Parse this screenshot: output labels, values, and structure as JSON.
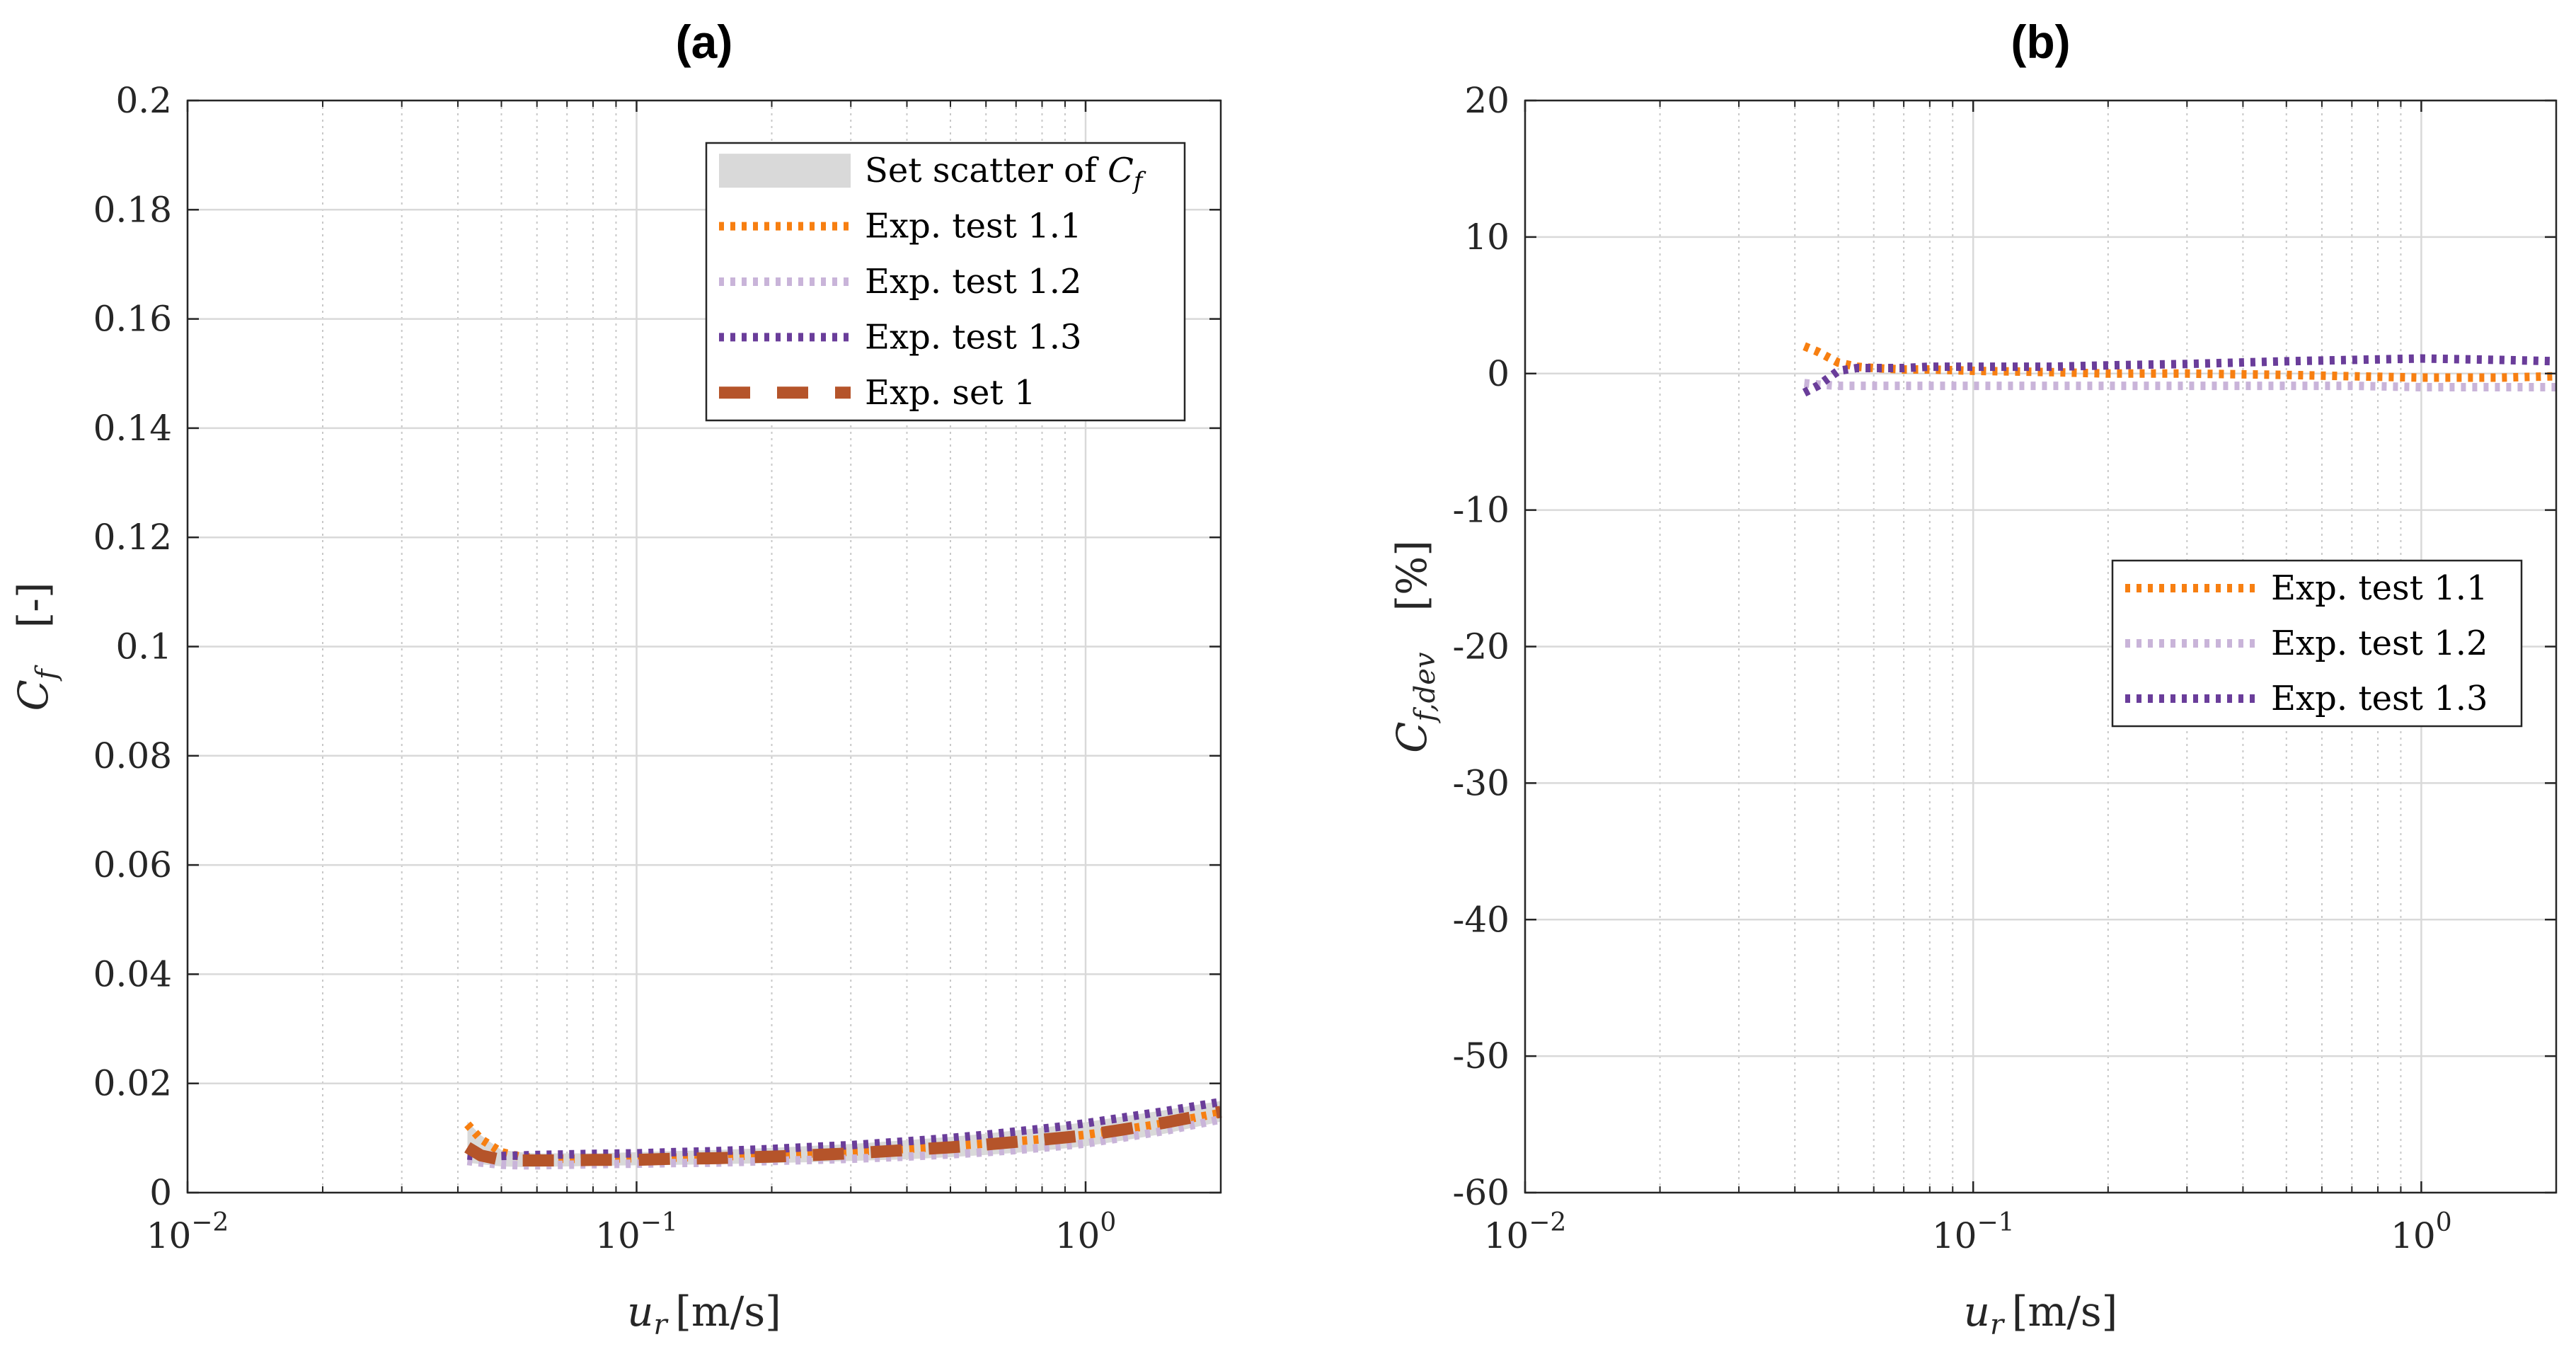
{
  "chart_data": [
    {
      "id": "a",
      "type": "line",
      "title": "(a)",
      "xscale": "log",
      "xlim": [
        0.01,
        2.0
      ],
      "ylim": [
        0,
        0.2
      ],
      "xticks": [
        {
          "value": 0.01,
          "base": "10",
          "exp": "−2"
        },
        {
          "value": 0.1,
          "base": "10",
          "exp": "−1"
        },
        {
          "value": 1,
          "base": "10",
          "exp": "0"
        }
      ],
      "yticks": [
        {
          "value": 0,
          "label": "0"
        },
        {
          "value": 0.02,
          "label": "0.02"
        },
        {
          "value": 0.04,
          "label": "0.04"
        },
        {
          "value": 0.06,
          "label": "0.06"
        },
        {
          "value": 0.08,
          "label": "0.08"
        },
        {
          "value": 0.1,
          "label": "0.1"
        },
        {
          "value": 0.12,
          "label": "0.12"
        },
        {
          "value": 0.14,
          "label": "0.14"
        },
        {
          "value": 0.16,
          "label": "0.16"
        },
        {
          "value": 0.18,
          "label": "0.18"
        },
        {
          "value": 0.2,
          "label": "0.2"
        }
      ],
      "xlabel": {
        "var": "u",
        "sub": "r",
        "unit": "[m/s]"
      },
      "ylabel": {
        "var": "C",
        "sub": "f",
        "unit": "[-]"
      },
      "grid": true,
      "legend_position": "top-right",
      "x": [
        0.042,
        0.045,
        0.05,
        0.055,
        0.06,
        0.07,
        0.08,
        0.1,
        0.12,
        0.15,
        0.2,
        0.25,
        0.3,
        0.4,
        0.5,
        0.6,
        0.7,
        0.8,
        0.9,
        1.0,
        1.2,
        1.5,
        2.0
      ],
      "scatter_band": {
        "name": "Set scatter of C_f",
        "legend_label": "Set scatter of ",
        "legend_var": "C",
        "legend_sub": "f",
        "color": "#d9d9d9",
        "lower": [
          0.0055,
          0.0052,
          0.0048,
          0.0047,
          0.0047,
          0.0048,
          0.0049,
          0.005,
          0.0051,
          0.0052,
          0.0054,
          0.0056,
          0.0058,
          0.0061,
          0.0065,
          0.0069,
          0.0073,
          0.0077,
          0.0081,
          0.0085,
          0.0095,
          0.0108,
          0.013
        ],
        "upper": [
          0.013,
          0.0105,
          0.0078,
          0.0074,
          0.0072,
          0.0072,
          0.0072,
          0.0074,
          0.0076,
          0.0078,
          0.0082,
          0.0086,
          0.0089,
          0.0096,
          0.0102,
          0.0108,
          0.0114,
          0.0119,
          0.0124,
          0.0129,
          0.0139,
          0.0151,
          0.0168
        ]
      },
      "series": [
        {
          "name": "Exp. test 1.1",
          "color": "#f77f11",
          "style": "dotted",
          "values": [
            0.0125,
            0.0098,
            0.0074,
            0.0066,
            0.0063,
            0.0062,
            0.0062,
            0.0063,
            0.0064,
            0.0066,
            0.0069,
            0.0072,
            0.0075,
            0.008,
            0.0085,
            0.009,
            0.0094,
            0.0098,
            0.0102,
            0.0106,
            0.0115,
            0.0127,
            0.0146
          ]
        },
        {
          "name": "Exp. test 1.2",
          "color": "#c9b4d9",
          "style": "dotted",
          "values": [
            0.0058,
            0.0055,
            0.0051,
            0.005,
            0.005,
            0.0051,
            0.0052,
            0.0053,
            0.0054,
            0.0055,
            0.0058,
            0.006,
            0.0062,
            0.0066,
            0.007,
            0.0074,
            0.0078,
            0.0082,
            0.0086,
            0.009,
            0.01,
            0.0113,
            0.0134
          ]
        },
        {
          "name": "Exp. test 1.3",
          "color": "#6a3d9a",
          "style": "dotted",
          "values": [
            0.0068,
            0.0066,
            0.0067,
            0.0068,
            0.0069,
            0.007,
            0.0071,
            0.0072,
            0.0074,
            0.0076,
            0.008,
            0.0084,
            0.0087,
            0.0094,
            0.01,
            0.0106,
            0.0112,
            0.0117,
            0.0122,
            0.0127,
            0.0137,
            0.0149,
            0.0166
          ]
        },
        {
          "name": "Exp. set 1",
          "color": "#b5542a",
          "style": "dashed",
          "values": [
            0.0083,
            0.0068,
            0.006,
            0.0059,
            0.0059,
            0.0059,
            0.006,
            0.006,
            0.0062,
            0.0063,
            0.0066,
            0.0069,
            0.0072,
            0.0078,
            0.0083,
            0.0088,
            0.0093,
            0.0097,
            0.0101,
            0.0105,
            0.0115,
            0.0128,
            0.0148
          ]
        }
      ]
    },
    {
      "id": "b",
      "type": "line",
      "title": "(b)",
      "xscale": "log",
      "xlim": [
        0.01,
        2.0
      ],
      "ylim": [
        -60,
        20
      ],
      "xticks": [
        {
          "value": 0.01,
          "base": "10",
          "exp": "−2"
        },
        {
          "value": 0.1,
          "base": "10",
          "exp": "−1"
        },
        {
          "value": 1,
          "base": "10",
          "exp": "0"
        }
      ],
      "yticks": [
        {
          "value": -60,
          "label": "-60"
        },
        {
          "value": -50,
          "label": "-50"
        },
        {
          "value": -40,
          "label": "-40"
        },
        {
          "value": -30,
          "label": "-30"
        },
        {
          "value": -20,
          "label": "-20"
        },
        {
          "value": -10,
          "label": "-10"
        },
        {
          "value": 0,
          "label": "0"
        },
        {
          "value": 10,
          "label": "10"
        },
        {
          "value": 20,
          "label": "20"
        }
      ],
      "xlabel": {
        "var": "u",
        "sub": "r",
        "unit": "[m/s]"
      },
      "ylabel": {
        "var": "C",
        "sub": "f,dev",
        "unit": "[%]"
      },
      "grid": true,
      "legend_position": "center-right",
      "x": [
        0.042,
        0.045,
        0.05,
        0.055,
        0.06,
        0.07,
        0.08,
        0.1,
        0.15,
        0.2,
        0.3,
        0.5,
        0.7,
        1.0,
        1.5,
        2.0
      ],
      "series": [
        {
          "name": "Exp. test 1.1",
          "color": "#f77f11",
          "style": "dashdot",
          "values": [
            2.0,
            1.6,
            0.8,
            0.5,
            0.4,
            0.3,
            0.3,
            0.2,
            0.1,
            0.0,
            0.0,
            -0.1,
            -0.2,
            -0.3,
            -0.3,
            -0.2
          ]
        },
        {
          "name": "Exp. test 1.2",
          "color": "#c9b4d9",
          "style": "dashdot",
          "values": [
            -0.7,
            -0.8,
            -0.9,
            -0.9,
            -0.9,
            -0.9,
            -0.9,
            -0.9,
            -0.9,
            -0.9,
            -0.9,
            -0.9,
            -0.9,
            -1.0,
            -1.0,
            -1.0
          ]
        },
        {
          "name": "Exp. test 1.3",
          "color": "#6a3d9a",
          "style": "dashdot",
          "values": [
            -1.4,
            -0.9,
            0.2,
            0.4,
            0.4,
            0.4,
            0.5,
            0.5,
            0.5,
            0.6,
            0.7,
            0.9,
            1.0,
            1.1,
            1.0,
            0.9
          ]
        }
      ]
    }
  ]
}
